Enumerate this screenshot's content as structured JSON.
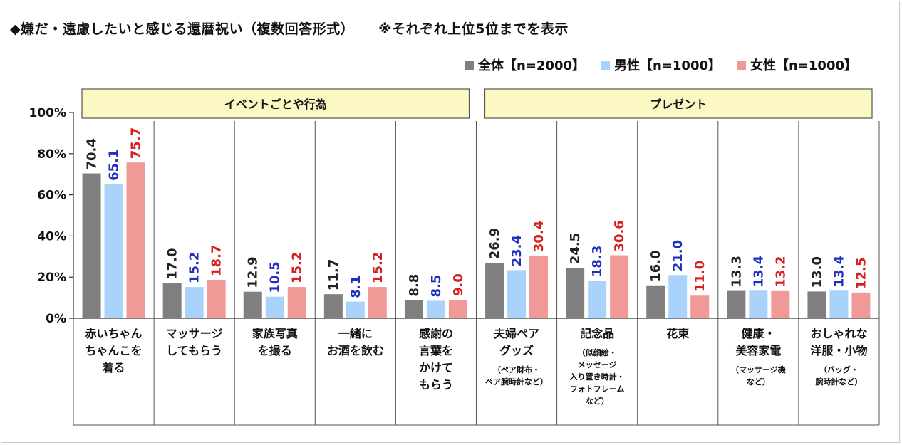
{
  "title": "◆嫌だ・遠慮したいと感じる還暦祝い（複数回答形式）",
  "note": "※それぞれ上位5位までを表示",
  "chart_data": {
    "type": "bar",
    "ylim": [
      0,
      100
    ],
    "yticks": [
      "0%",
      "20%",
      "40%",
      "60%",
      "80%",
      "100%"
    ],
    "ytick_values": [
      0,
      20,
      40,
      60,
      80,
      100
    ],
    "groups": [
      {
        "label": "イベントごとや行為",
        "start": 0,
        "end": 4
      },
      {
        "label": "プレゼント",
        "start": 5,
        "end": 9
      }
    ],
    "categories": [
      {
        "lines": [
          "赤いちゃん",
          "ちゃんこを",
          "着る"
        ],
        "sub": []
      },
      {
        "lines": [
          "マッサージ",
          "してもらう"
        ],
        "sub": []
      },
      {
        "lines": [
          "家族写真",
          "を撮る"
        ],
        "sub": []
      },
      {
        "lines": [
          "一緒に",
          "お酒を飲む"
        ],
        "sub": []
      },
      {
        "lines": [
          "感謝の",
          "言葉を",
          "かけて",
          "もらう"
        ],
        "sub": []
      },
      {
        "lines": [
          "夫婦ペア",
          "グッズ"
        ],
        "sub": [
          "（ペア財布・",
          "ペア腕時計など）"
        ]
      },
      {
        "lines": [
          "記念品"
        ],
        "sub": [
          "（似顔絵・",
          "メッセージ",
          "入り置き時計・",
          "フォトフレーム",
          "など）"
        ]
      },
      {
        "lines": [
          "花束"
        ],
        "sub": []
      },
      {
        "lines": [
          "健康・",
          "美容家電"
        ],
        "sub": [
          "（マッサージ機",
          "など）"
        ]
      },
      {
        "lines": [
          "おしゃれな",
          "洋服・小物"
        ],
        "sub": [
          "（バッグ・",
          "腕時計など）"
        ]
      }
    ],
    "series": [
      {
        "name": "全体【n=2000】",
        "color": "#7f7f7f",
        "label_color": "#222222",
        "values": [
          70.4,
          17.0,
          12.9,
          11.7,
          8.8,
          26.9,
          24.5,
          16.0,
          13.3,
          13.0
        ],
        "labels": [
          "70.4",
          "17.0",
          "12.9",
          "11.7",
          "8.8",
          "26.9",
          "24.5",
          "16.0",
          "13.3",
          "13.0"
        ]
      },
      {
        "name": "男性【n=1000】",
        "color": "#a9d3fb",
        "label_color": "#1f2fbf",
        "values": [
          65.1,
          15.2,
          10.5,
          8.1,
          8.5,
          23.4,
          18.3,
          21.0,
          13.4,
          13.4
        ],
        "labels": [
          "65.1",
          "15.2",
          "10.5",
          "8.1",
          "8.5",
          "23.4",
          "18.3",
          "21.0",
          "13.4",
          "13.4"
        ]
      },
      {
        "name": "女性【n=1000】",
        "color": "#f09a98",
        "label_color": "#d42020",
        "values": [
          75.7,
          18.7,
          15.2,
          15.2,
          9.0,
          30.4,
          30.6,
          11.0,
          13.2,
          12.5
        ],
        "labels": [
          "75.7",
          "18.7",
          "15.2",
          "15.2",
          "9.0",
          "30.4",
          "30.6",
          "11.0",
          "13.2",
          "12.5"
        ]
      }
    ],
    "grid": false,
    "legend_position": "top-right"
  }
}
